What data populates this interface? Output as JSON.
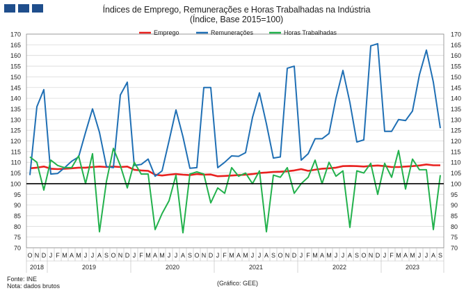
{
  "title": "Índices de Emprego, Remunerações e Horas Trabalhadas na Indústria",
  "subtitle": "(Índice, Base 2015=100)",
  "footer": {
    "source": "Fonte: INE",
    "note": "Nota: dados brutos",
    "credit": "(Gráfico: GEE)"
  },
  "colors": {
    "brand": "#1f4e8c",
    "emprego": "#e8211f",
    "remuneracoes": "#1f6fb4",
    "horas": "#22b14c",
    "reference": "#000000"
  },
  "chart_data": {
    "type": "line",
    "ylim": [
      70,
      170
    ],
    "y_ticks": [
      70,
      75,
      80,
      85,
      90,
      95,
      100,
      105,
      110,
      115,
      120,
      125,
      130,
      135,
      140,
      145,
      150,
      155,
      160,
      165,
      170
    ],
    "grid": true,
    "legend_position": "top",
    "reference_line": 100,
    "x_month_labels": [
      "O",
      "N",
      "D",
      "J",
      "F",
      "M",
      "A",
      "M",
      "J",
      "J",
      "A",
      "S",
      "O",
      "N",
      "D",
      "J",
      "F",
      "M",
      "A",
      "M",
      "J",
      "J",
      "A",
      "S",
      "O",
      "N",
      "D",
      "J",
      "F",
      "M",
      "A",
      "M",
      "J",
      "J",
      "A",
      "S",
      "O",
      "N",
      "D",
      "J",
      "F",
      "M",
      "A",
      "M",
      "J",
      "J",
      "A",
      "S",
      "O",
      "N",
      "D",
      "J",
      "F",
      "M",
      "A",
      "M",
      "J",
      "J",
      "A",
      "S"
    ],
    "year_groups": [
      {
        "label": "2018",
        "start": 0,
        "end": 2
      },
      {
        "label": "2019",
        "start": 3,
        "end": 14
      },
      {
        "label": "2020",
        "start": 15,
        "end": 26
      },
      {
        "label": "2021",
        "start": 27,
        "end": 38
      },
      {
        "label": "2022",
        "start": 39,
        "end": 50
      },
      {
        "label": "2023",
        "start": 51,
        "end": 59
      }
    ],
    "series": [
      {
        "name": "Emprego",
        "color": "#e8211f",
        "values": [
          107.2,
          107.5,
          108.0,
          107.0,
          106.8,
          107.0,
          107.2,
          107.5,
          107.5,
          107.8,
          108.0,
          107.8,
          108.0,
          107.8,
          108.0,
          106.5,
          106.2,
          106.0,
          104.2,
          103.8,
          104.2,
          104.5,
          104.2,
          104.0,
          104.5,
          104.2,
          104.3,
          103.5,
          103.6,
          103.8,
          104.0,
          104.2,
          104.5,
          105.0,
          105.2,
          105.5,
          105.6,
          105.8,
          106.2,
          106.8,
          106.0,
          106.5,
          107.0,
          107.2,
          107.5,
          108.2,
          108.3,
          108.2,
          108.0,
          108.3,
          108.5,
          108.2,
          107.8,
          107.8,
          108.0,
          108.2,
          108.5,
          109.0,
          108.6,
          108.6
        ]
      },
      {
        "name": "Remunerações",
        "color": "#1f6fb4",
        "values": [
          104.0,
          136.0,
          144.0,
          104.5,
          104.8,
          107.5,
          110.5,
          112.5,
          124.0,
          135.0,
          124.0,
          108.0,
          107.5,
          141.5,
          147.5,
          108.5,
          109.0,
          111.5,
          103.5,
          106.0,
          120.0,
          134.5,
          122.0,
          107.2,
          107.5,
          145.0,
          145.0,
          107.5,
          110.0,
          113.0,
          112.8,
          114.5,
          131.0,
          142.5,
          128.0,
          112.0,
          112.5,
          154.0,
          155.0,
          111.0,
          114.0,
          121.0,
          121.0,
          123.5,
          140.0,
          153.0,
          138.0,
          119.5,
          120.5,
          164.5,
          165.5,
          124.5,
          124.5,
          130.0,
          129.5,
          134.0,
          151.0,
          162.5,
          147.5,
          126.0
        ]
      },
      {
        "name": "Horas Trabalhadas",
        "color": "#22b14c",
        "values": [
          112.5,
          110.0,
          97.0,
          111.0,
          108.5,
          107.5,
          107.5,
          113.0,
          100.0,
          114.0,
          77.5,
          101.0,
          116.5,
          108.5,
          98.0,
          110.0,
          104.5,
          104.5,
          78.5,
          86.0,
          92.0,
          104.0,
          77.0,
          104.5,
          105.5,
          104.5,
          91.0,
          98.0,
          95.5,
          107.5,
          103.5,
          105.0,
          100.0,
          106.0,
          77.5,
          104.0,
          103.0,
          107.5,
          95.5,
          100.0,
          103.0,
          111.0,
          100.0,
          110.0,
          103.5,
          106.0,
          79.5,
          106.0,
          105.0,
          109.5,
          95.0,
          109.5,
          103.0,
          115.5,
          97.5,
          111.5,
          106.5,
          106.5,
          78.5,
          104.0
        ]
      }
    ]
  }
}
